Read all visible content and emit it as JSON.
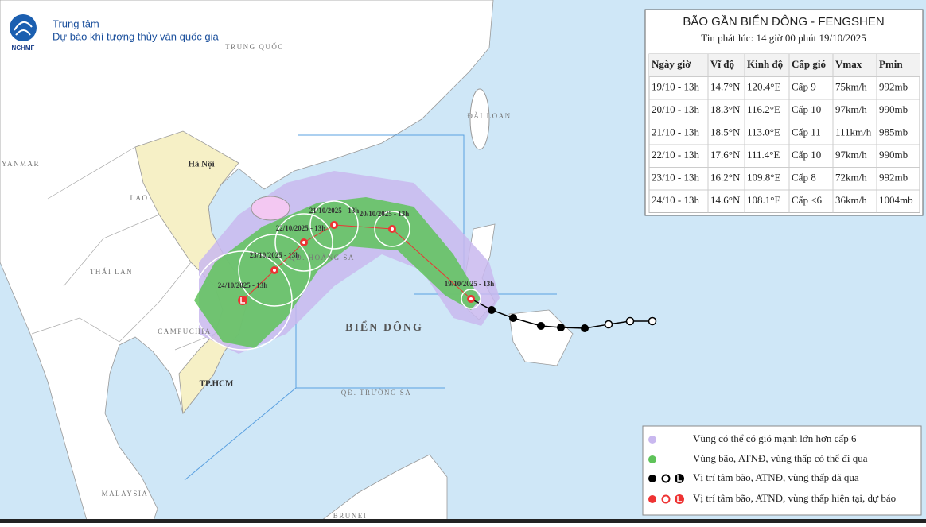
{
  "header": {
    "logo": "NCHMF",
    "line1": "Trung tâm",
    "line2": "Dự báo khí tượng thủy văn quốc gia"
  },
  "map_labels": [
    "TRUNG QUỐC",
    "ĐÀI LOAN",
    "YANMAR",
    "Hà Nội",
    "LAO",
    "THÁI LAN",
    "CAMPUCHIA",
    "TP.HCM",
    "QĐ. HOÀNG SA",
    "BIỂN ĐÔNG",
    "QĐ. TRƯỜNG SA",
    "MALAYSIA",
    "BRUNEI"
  ],
  "forecast_labels": [
    "19/10/2025 - 13h",
    "20/10/2025 - 13h",
    "21/10/2025 - 13h",
    "22/10/2025 - 13h",
    "23/10/2025 - 13h",
    "24/10/2025 - 13h"
  ],
  "table": {
    "title": "BÃO GẦN BIỂN ĐÔNG - FENGSHEN",
    "subtitle": "Tin phát lúc: 14 giờ 00 phút 19/10/2025",
    "columns": [
      "Ngày giờ",
      "Vĩ độ",
      "Kinh độ",
      "Cấp gió",
      "Vmax",
      "Pmin"
    ],
    "rows": [
      [
        "19/10 - 13h",
        "14.7°N",
        "120.4°E",
        "Cấp 9",
        "75km/h",
        "992mb"
      ],
      [
        "20/10 - 13h",
        "18.3°N",
        "116.2°E",
        "Cấp 10",
        "97km/h",
        "990mb"
      ],
      [
        "21/10 - 13h",
        "18.5°N",
        "113.0°E",
        "Cấp 11",
        "111km/h",
        "985mb"
      ],
      [
        "22/10 - 13h",
        "17.6°N",
        "111.4°E",
        "Cấp 10",
        "97km/h",
        "990mb"
      ],
      [
        "23/10 - 13h",
        "16.2°N",
        "109.8°E",
        "Cấp 8",
        "72km/h",
        "992mb"
      ],
      [
        "24/10 - 13h",
        "14.6°N",
        "108.1°E",
        "Cấp <6",
        "36km/h",
        "1004mb"
      ]
    ]
  },
  "legend": [
    "Vùng có thể có gió mạnh lớn hơn cấp 6",
    "Vùng bão, ATNĐ, vùng thấp có thể đi qua",
    "Vị trí tâm bão, ATNĐ, vùng thấp đã qua",
    "Vị trí tâm bão, ATNĐ, vùng thấp hiện tại, dự báo"
  ]
}
